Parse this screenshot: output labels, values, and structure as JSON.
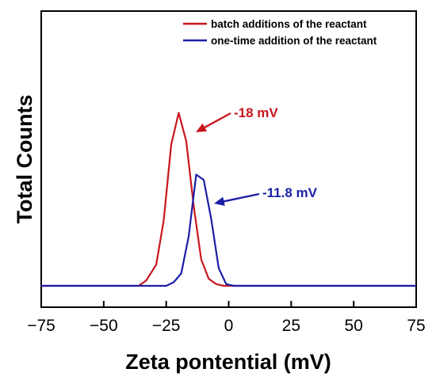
{
  "chart_data": {
    "type": "line",
    "title": "",
    "xlabel": "Zeta pontential (mV)",
    "ylabel": "Total Counts",
    "xlim": [
      -75,
      75
    ],
    "ylim": [
      0,
      1.08
    ],
    "x_ticks": [
      -75,
      -50,
      -25,
      0,
      25,
      50,
      75
    ],
    "x_tick_labels": [
      "−75",
      "−50",
      "−25",
      "0",
      "25",
      "50",
      "75"
    ],
    "y_ticks_shown": false,
    "grid": false,
    "legend_position": "top-right",
    "series": [
      {
        "name": "batch additions of the reactant",
        "color": "#c8161d",
        "x": [
          -75,
          -36,
          -33,
          -29,
          -26,
          -23,
          -20,
          -17,
          -14,
          -11,
          -8,
          -5,
          -2,
          2,
          75
        ],
        "y": [
          0,
          0,
          0.03,
          0.12,
          0.37,
          0.8,
          0.98,
          0.82,
          0.45,
          0.15,
          0.04,
          0.01,
          0,
          0,
          0
        ]
      },
      {
        "name": "one-time addition of the reactant",
        "color": "#1b1fa5",
        "x": [
          -75,
          -25,
          -22,
          -19,
          -16,
          -13,
          -10,
          -7,
          -4,
          -1,
          2,
          75
        ],
        "y": [
          0,
          0,
          0.02,
          0.07,
          0.28,
          0.63,
          0.6,
          0.38,
          0.1,
          0.01,
          0,
          0
        ]
      }
    ],
    "annotations": [
      {
        "text": "-18 mV",
        "color": "#c8161d",
        "points_to": [
          -15,
          0.88
        ]
      },
      {
        "text": "-11.8 mV",
        "color": "#1b1fa5",
        "points_to": [
          -9,
          0.42
        ]
      }
    ]
  }
}
